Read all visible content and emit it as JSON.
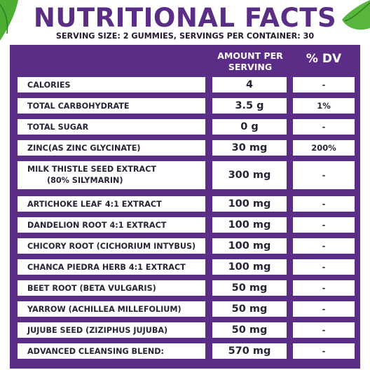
{
  "title": "NUTRITIONAL FACTS",
  "subtitle": "SERVING SIZE: 2 GUMMIES, SERVINGS PER CONTAINER: 30",
  "columns": {
    "amount_line1": "AMOUNT PER",
    "amount_line2": "SERVING",
    "dv": "% DV"
  },
  "rows": [
    {
      "name": "CALORIES",
      "amount": "4",
      "dv": "-"
    },
    {
      "name": "TOTAL CARBOHYDRATE",
      "amount": "3.5 g",
      "dv": "1%"
    },
    {
      "name": "TOTAL SUGAR",
      "amount": "0 g",
      "dv": "-"
    },
    {
      "name": "ZINC(AS ZINC GLYCINATE)",
      "amount": "30 mg",
      "dv": "200%"
    },
    {
      "name": "MILK THISTLE SEED EXTRACT",
      "name2": "(80% SILYMARIN)",
      "amount": "300 mg",
      "dv": "-"
    },
    {
      "name": "ARTICHOKE LEAF 4:1 EXTRACT",
      "amount": "100 mg",
      "dv": "-"
    },
    {
      "name": "DANDELION ROOT 4:1 EXTRACT",
      "amount": "100 mg",
      "dv": "-"
    },
    {
      "name": "CHICORY ROOT (CICHORIUM INTYBUS)",
      "amount": "100 mg",
      "dv": "-"
    },
    {
      "name": "CHANCA PIEDRA HERB 4:1 EXTRACT",
      "amount": "100 mg",
      "dv": "-"
    },
    {
      "name": "BEET ROOT (BETA VULGARIS)",
      "amount": "50 mg",
      "dv": "-"
    },
    {
      "name": "YARROW (ACHILLEA MILLEFOLIUM)",
      "amount": "50 mg",
      "dv": "-"
    },
    {
      "name": "JUJUBE SEED (ZIZIPHUS JUJUBA)",
      "amount": "50 mg",
      "dv": "-"
    },
    {
      "name": "ADVANCED CLEANSING BLEND:",
      "amount": "570 mg",
      "dv": "-"
    }
  ],
  "colors": {
    "panel": "#5b2d86",
    "title": "#5a2d86",
    "leaf": "#3f9a2c"
  }
}
